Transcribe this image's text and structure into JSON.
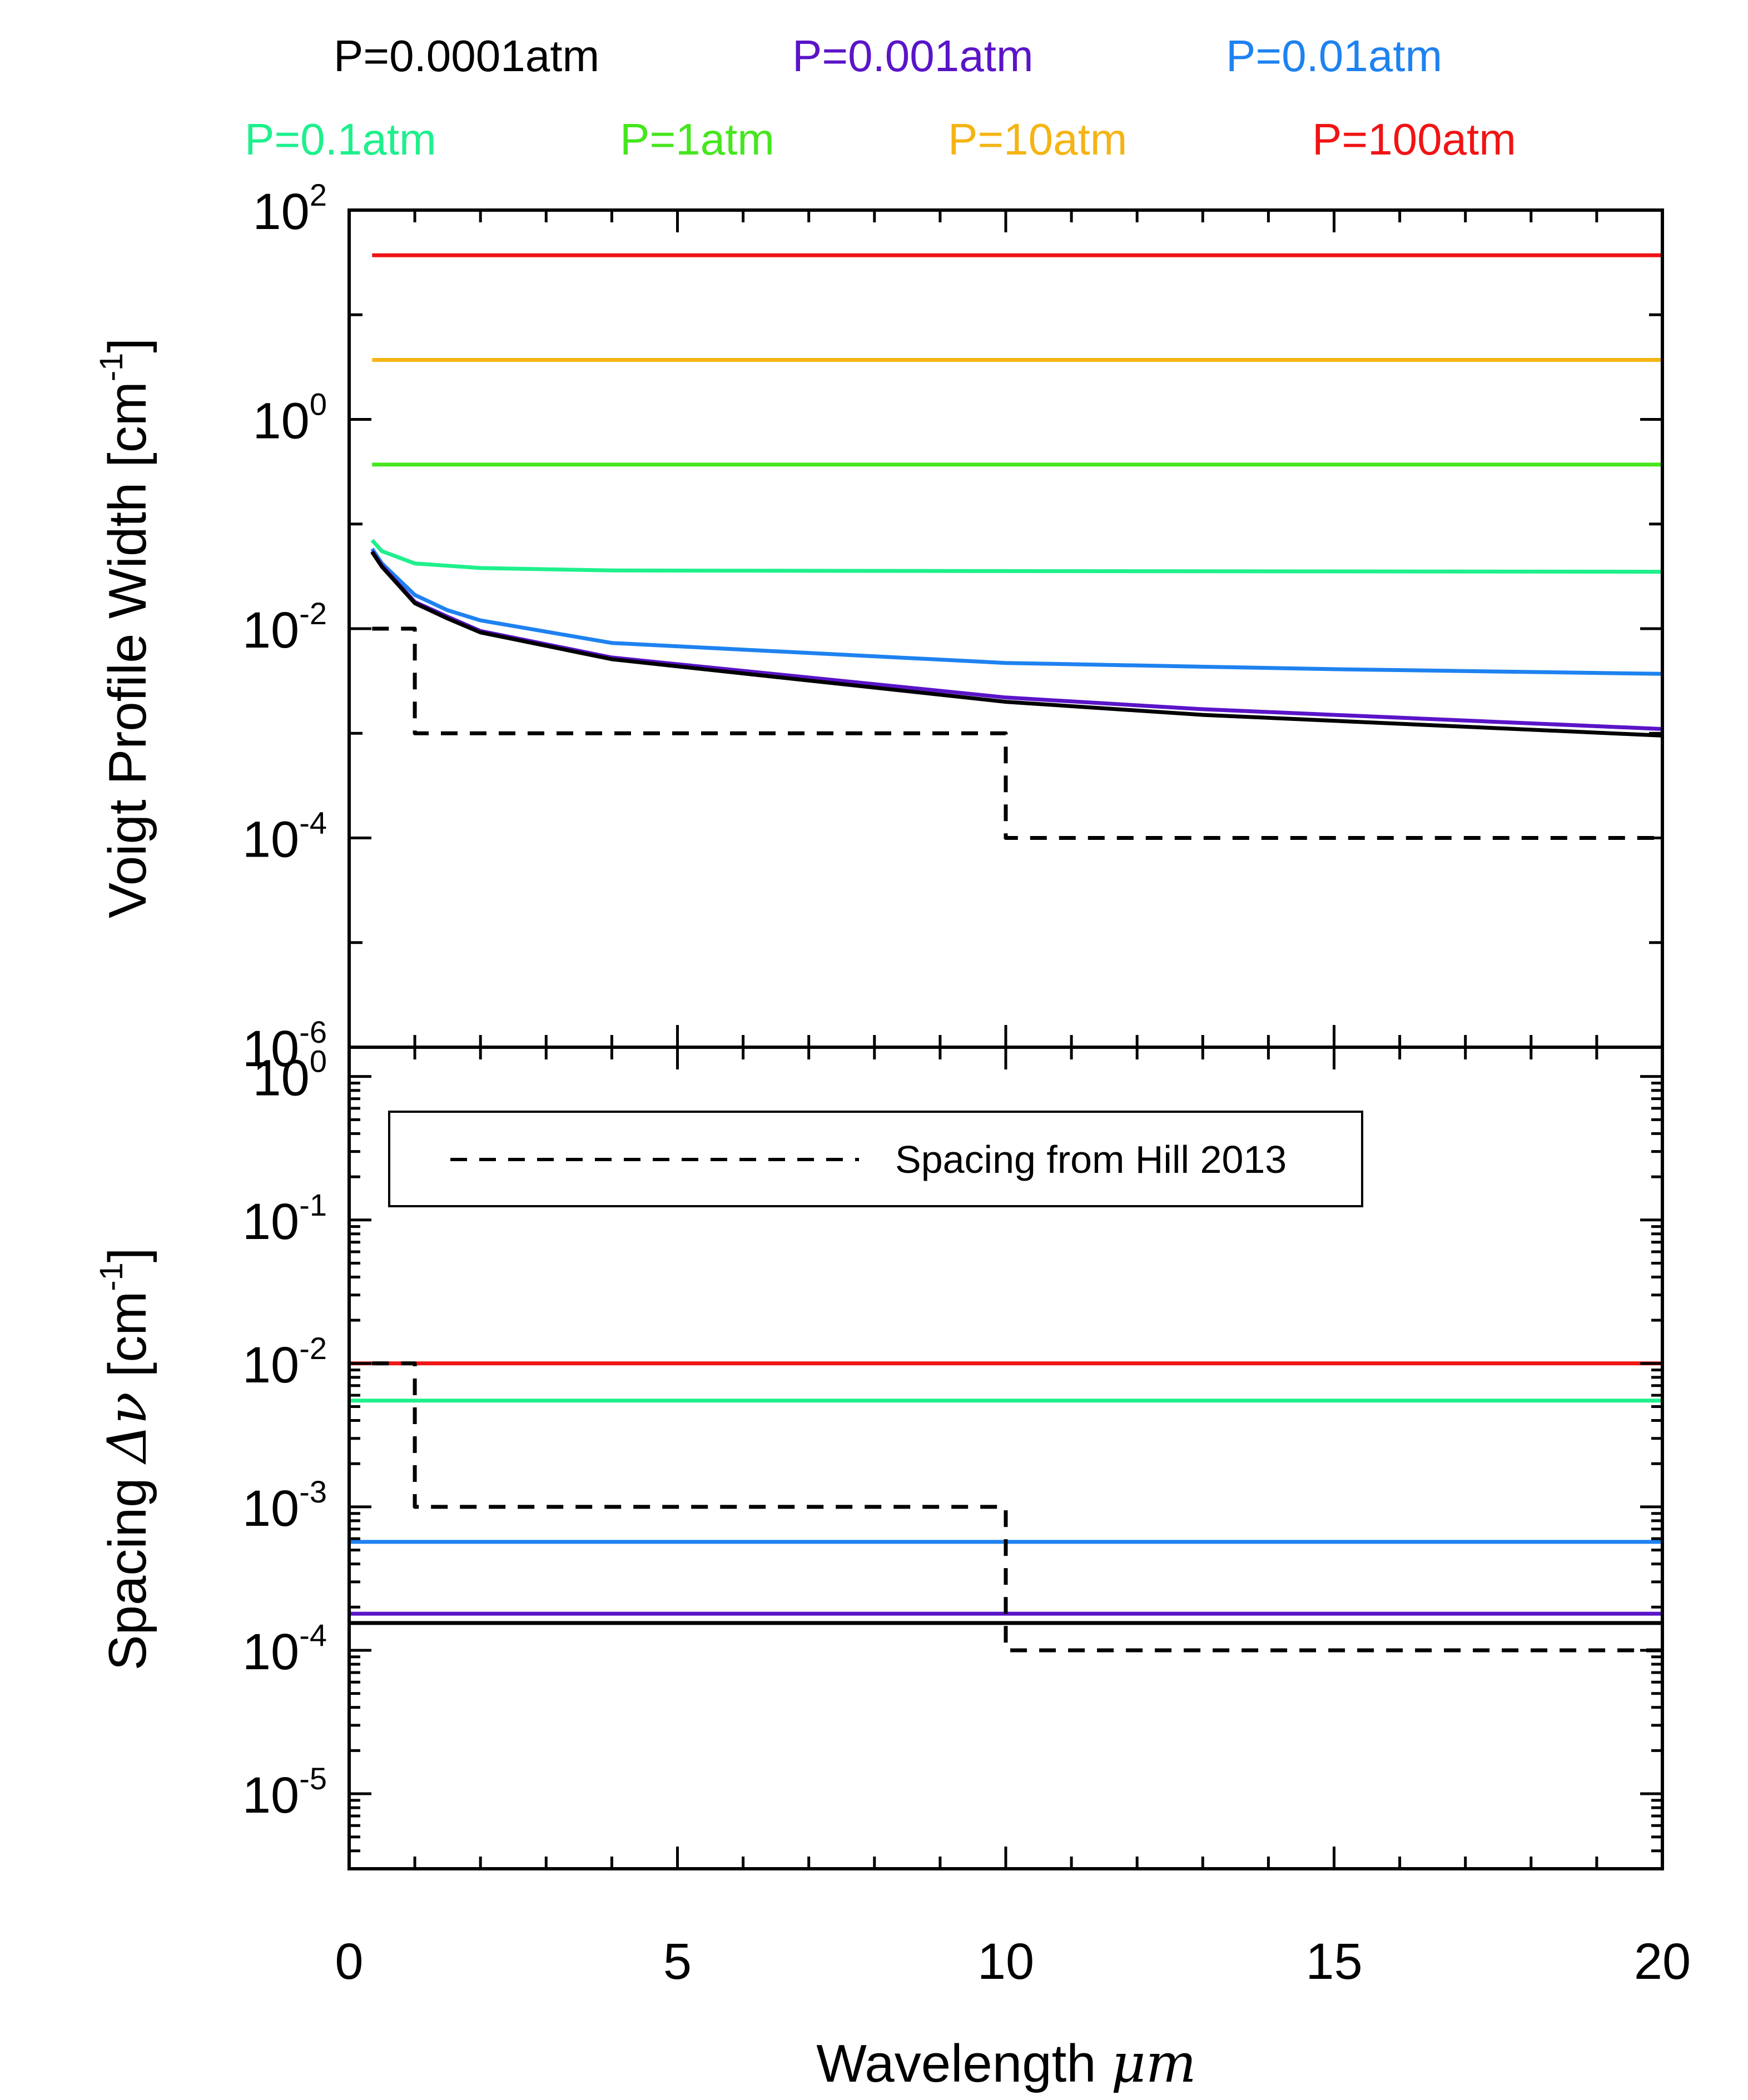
{
  "legend": [
    {
      "label": "P=0.0001atm",
      "color": "#000000"
    },
    {
      "label": "P=0.001atm",
      "color": "#5a14c8"
    },
    {
      "label": "P=0.01atm",
      "color": "#1e82f0"
    },
    {
      "label": "P=0.1atm",
      "color": "#1ef08c"
    },
    {
      "label": "P=1atm",
      "color": "#46e61e"
    },
    {
      "label": "P=10atm",
      "color": "#f5b414"
    },
    {
      "label": "P=100atm",
      "color": "#f01414"
    }
  ],
  "chart_data": [
    {
      "type": "line",
      "panel": "top",
      "yscale": "log",
      "ylabel": "Voigt Profile Width [cm",
      "ylabel_sup": "-1",
      "ylabel_tail": "]",
      "xlim": [
        0,
        20
      ],
      "ylim": [
        1e-06,
        100
      ],
      "yticks": [
        {
          "base": "10",
          "exp": "2",
          "value": 100
        },
        {
          "base": "10",
          "exp": "0",
          "value": 1
        },
        {
          "base": "10",
          "exp": "-2",
          "value": 0.01
        },
        {
          "base": "10",
          "exp": "-4",
          "value": 0.0001
        },
        {
          "base": "10",
          "exp": "-6",
          "value": 1e-06
        }
      ],
      "series": [
        {
          "name": "P=100atm",
          "color": "#f01414",
          "dash": false,
          "x": [
            0.35,
            20
          ],
          "y": [
            37,
            37
          ]
        },
        {
          "name": "P=10atm",
          "color": "#f5b414",
          "dash": false,
          "x": [
            0.35,
            20
          ],
          "y": [
            3.7,
            3.7
          ]
        },
        {
          "name": "P=1atm",
          "color": "#46e61e",
          "dash": false,
          "x": [
            0.35,
            20
          ],
          "y": [
            0.37,
            0.37
          ]
        },
        {
          "name": "P=0.1atm",
          "color": "#1ef08c",
          "dash": false,
          "x": [
            0.35,
            0.5,
            1,
            2,
            4,
            10,
            20
          ],
          "y": [
            0.07,
            0.055,
            0.042,
            0.038,
            0.036,
            0.0355,
            0.035
          ]
        },
        {
          "name": "P=0.01atm",
          "color": "#1e82f0",
          "dash": false,
          "x": [
            0.35,
            0.5,
            1,
            1.5,
            2,
            4,
            10,
            15,
            20
          ],
          "y": [
            0.058,
            0.042,
            0.021,
            0.015,
            0.012,
            0.0073,
            0.0047,
            0.0041,
            0.0037
          ]
        },
        {
          "name": "P=0.001atm",
          "color": "#5a14c8",
          "dash": false,
          "x": [
            0.35,
            0.5,
            1,
            1.5,
            2,
            4,
            10,
            13,
            20
          ],
          "y": [
            0.055,
            0.04,
            0.018,
            0.013,
            0.0095,
            0.0053,
            0.0022,
            0.0017,
            0.0011
          ]
        },
        {
          "name": "P=0.0001atm",
          "color": "#000000",
          "dash": false,
          "x": [
            0.35,
            0.5,
            1,
            1.5,
            2,
            4,
            10,
            13,
            20
          ],
          "y": [
            0.054,
            0.039,
            0.0175,
            0.0125,
            0.0092,
            0.0051,
            0.002,
            0.0015,
            0.00095
          ]
        },
        {
          "name": "Spacing from Hill 2013",
          "color": "#000000",
          "dash": true,
          "x": [
            0.35,
            1,
            1,
            10,
            10,
            20
          ],
          "y": [
            0.01,
            0.01,
            0.001,
            0.001,
            0.0001,
            0.0001
          ]
        }
      ]
    },
    {
      "type": "line",
      "panel": "bottom",
      "yscale": "log",
      "ylabel_pre": "Spacing ",
      "ylabel_symbol": "Δν",
      "ylabel": " [cm",
      "ylabel_sup": "-1",
      "ylabel_tail": "]",
      "xlabel": "Wavelength ",
      "xlabel_unit": "μm",
      "xlim": [
        0,
        20
      ],
      "ylim": [
        3e-06,
        1.6
      ],
      "xticks": [
        "0",
        "5",
        "10",
        "15",
        "20"
      ],
      "yticks": [
        {
          "base": "10",
          "exp": "0",
          "value": 1
        },
        {
          "base": "10",
          "exp": "-1",
          "value": 0.1
        },
        {
          "base": "10",
          "exp": "-2",
          "value": 0.01
        },
        {
          "base": "10",
          "exp": "-3",
          "value": 0.001
        },
        {
          "base": "10",
          "exp": "-4",
          "value": 0.0001
        },
        {
          "base": "10",
          "exp": "-5",
          "value": 1e-05
        }
      ],
      "legend_box": {
        "label": "Spacing from Hill 2013"
      },
      "series": [
        {
          "name": "P=100atm",
          "color": "#f01414",
          "dash": false,
          "x": [
            0,
            20
          ],
          "y": [
            0.01,
            0.01
          ]
        },
        {
          "name": "P=0.1atm",
          "color": "#1ef08c",
          "dash": false,
          "x": [
            0,
            20
          ],
          "y": [
            0.0055,
            0.0055
          ]
        },
        {
          "name": "P=0.01atm",
          "color": "#1e82f0",
          "dash": false,
          "x": [
            0,
            20
          ],
          "y": [
            0.00057,
            0.00057
          ]
        },
        {
          "name": "P=0.001atm",
          "color": "#5a14c8",
          "dash": false,
          "x": [
            0,
            20
          ],
          "y": [
            0.00018,
            0.00018
          ]
        },
        {
          "name": "P=0.0001atm",
          "color": "#000000",
          "dash": false,
          "x": [
            0,
            20
          ],
          "y": [
            0.000155,
            0.000155
          ]
        },
        {
          "name": "Spacing from Hill 2013",
          "color": "#000000",
          "dash": true,
          "x": [
            0.35,
            1,
            1,
            10,
            10,
            20
          ],
          "y": [
            0.01,
            0.01,
            0.001,
            0.001,
            0.0001,
            0.0001
          ]
        }
      ]
    }
  ]
}
